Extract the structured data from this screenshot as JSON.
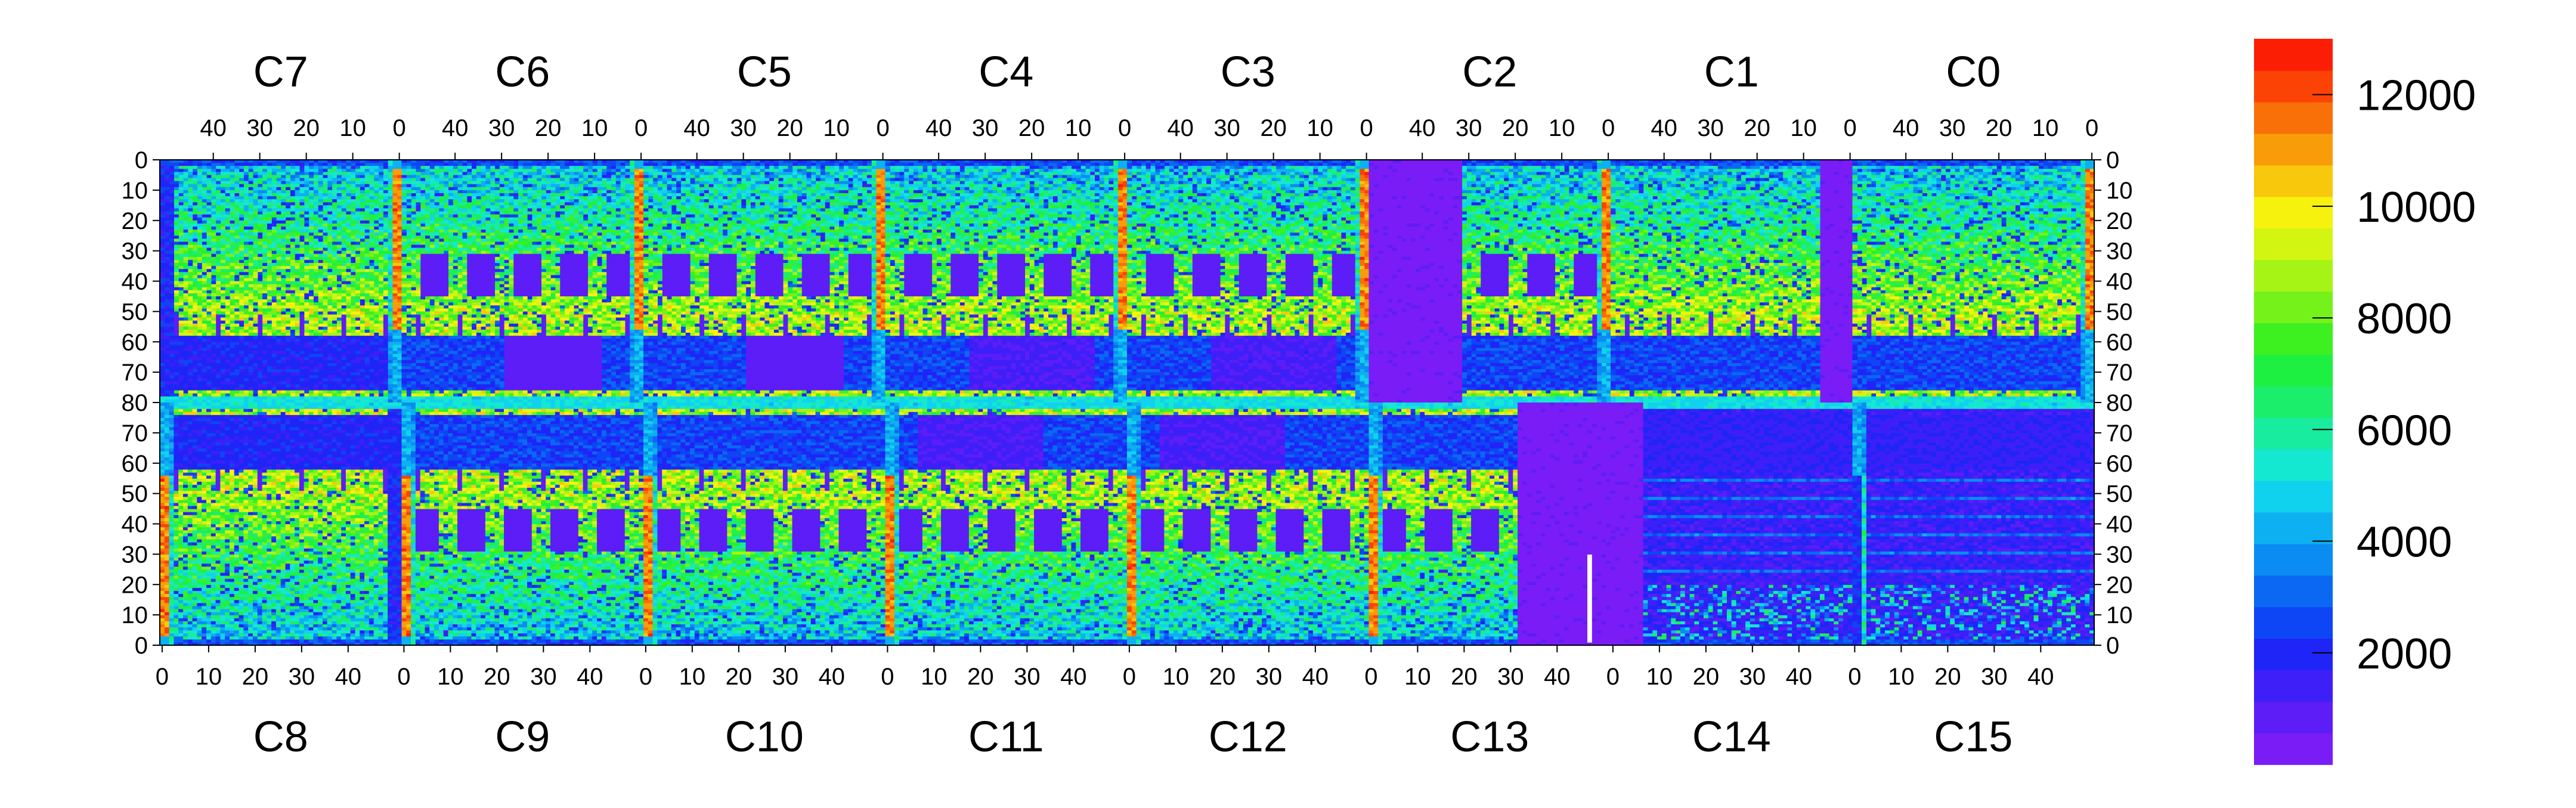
{
  "chart_data": {
    "type": "heatmap",
    "title": "",
    "xlabel": "",
    "ylabel": "",
    "grid": false,
    "chips_top": [
      "C7",
      "C6",
      "C5",
      "C4",
      "C3",
      "C2",
      "C1",
      "C0"
    ],
    "chips_bottom": [
      "C8",
      "C9",
      "C10",
      "C11",
      "C12",
      "C13",
      "C14",
      "C15"
    ],
    "top_axis_ticks": [
      "40",
      "30",
      "20",
      "10",
      "0"
    ],
    "bottom_axis_ticks": [
      "0",
      "10",
      "20",
      "30",
      "40"
    ],
    "y_ticks_top_half": [
      "0",
      "10",
      "20",
      "30",
      "40",
      "50",
      "60",
      "70",
      "80"
    ],
    "y_ticks_bottom_half": [
      "70",
      "60",
      "50",
      "40",
      "30",
      "20",
      "10",
      "0"
    ],
    "columns_per_chip": 52,
    "rows_per_half": 80,
    "z_range": [
      0,
      13000
    ],
    "colorbar": {
      "ticks": [
        "2000",
        "4000",
        "6000",
        "8000",
        "10000",
        "12000"
      ],
      "tick_values": [
        2000,
        4000,
        6000,
        8000,
        10000,
        12000
      ],
      "max": 13000,
      "palette": [
        "#7a1cf5",
        "#5d1df7",
        "#3e1ff8",
        "#1f25f7",
        "#0e45f5",
        "#0a68f3",
        "#0b8cf2",
        "#0db0f0",
        "#10d2ee",
        "#15e8d0",
        "#18ec9e",
        "#1aee6a",
        "#1df040",
        "#3df020",
        "#75f21a",
        "#a6f416",
        "#d2f512",
        "#f6f20e",
        "#f8c80c",
        "#f99c0a",
        "#fa7008",
        "#fb4306",
        "#fc1e04"
      ]
    },
    "cell_levels": {
      "dead_region": 300,
      "chip_edge_high": 12500,
      "chip_edge_low": 4500,
      "active_high": 8500,
      "active_medium": 6000,
      "active_low": 3500,
      "quiet": 1200,
      "blocks": 800,
      "masked": null
    }
  }
}
